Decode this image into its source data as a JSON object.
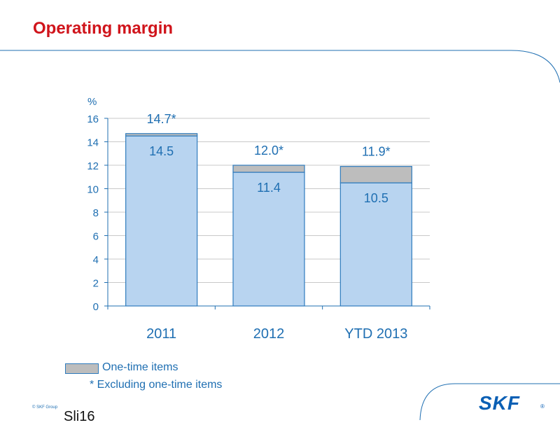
{
  "slide": {
    "title": "Operating margin",
    "legend_label": "One-time items",
    "footnote": "*  Excluding one-time items",
    "copyright": "© SKF Group",
    "slide_number": "Sli16",
    "logo": "SKF",
    "logo_mark": "®"
  },
  "colors": {
    "title": "#d0141b",
    "bar_base": "#b8d4f0",
    "bar_onetime": "#bdbdbd",
    "bar_border": "#2e7bbd",
    "text_blue": "#1f6fb2"
  },
  "chart_data": {
    "type": "bar",
    "stacked": true,
    "categories": [
      "2011",
      "2012",
      "YTD 2013"
    ],
    "series": [
      {
        "values": [
          14.5,
          11.4,
          10.5
        ]
      },
      {
        "name": "One-time items",
        "values": [
          0.2,
          0.6,
          1.4
        ]
      }
    ],
    "base_labels": [
      "14.5",
      "11.4",
      "10.5"
    ],
    "total_labels": [
      "14.7*",
      "12.0*",
      "11.9*"
    ],
    "y_unit_label": "%",
    "y_ticks": [
      "0",
      "2",
      "4",
      "6",
      "8",
      "10",
      "12",
      "14",
      "16"
    ],
    "ylim": [
      0,
      16
    ],
    "grid": true,
    "legend_position": "bottom-left"
  }
}
